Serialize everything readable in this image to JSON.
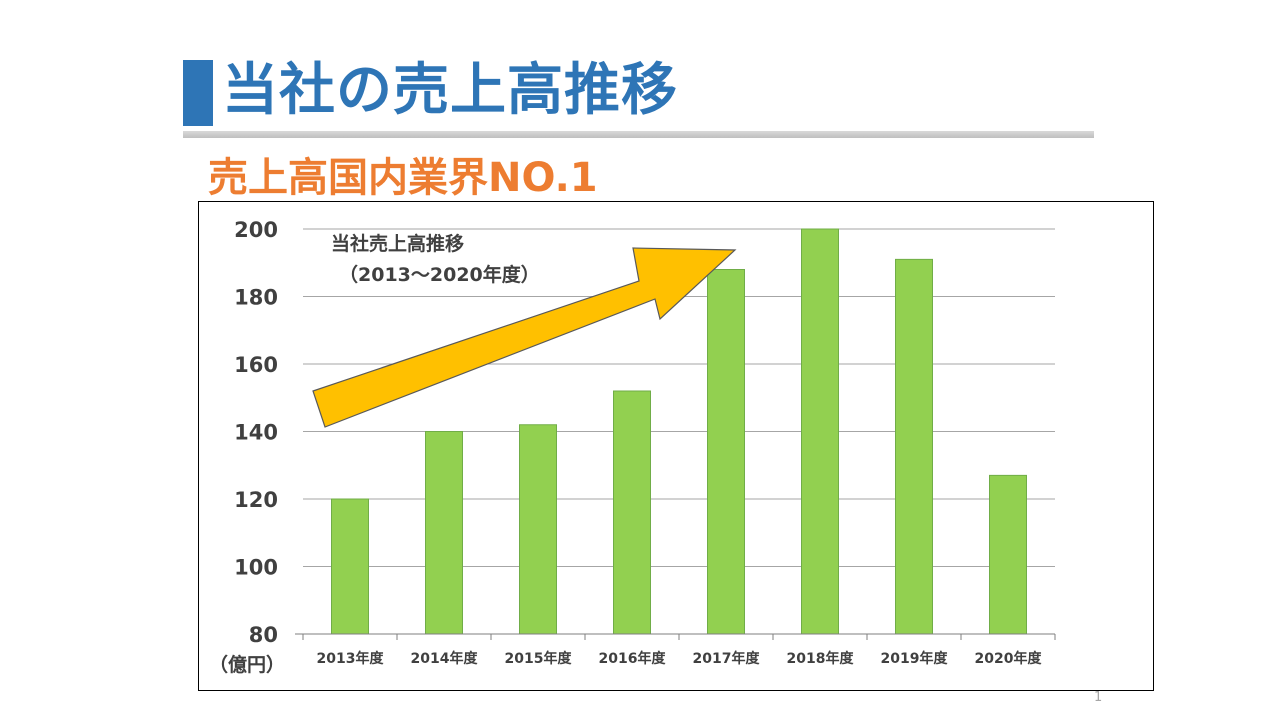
{
  "slide": {
    "title": "当社の売上高推移",
    "subtitle": "売上高国内業界NO.1",
    "page_number": "1"
  },
  "colors": {
    "title": "#2e75b6",
    "subtitle": "#ed7d31",
    "bar_fill": "#92d050",
    "bar_stroke": "#70ad47",
    "arrow_fill": "#ffc000"
  },
  "chart_data": {
    "type": "bar",
    "categories": [
      "2013年度",
      "2014年度",
      "2015年度",
      "2016年度",
      "2017年度",
      "2018年度",
      "2019年度",
      "2020年度"
    ],
    "values": [
      120,
      140,
      142,
      152,
      188,
      200,
      191,
      127
    ],
    "title": "",
    "xlabel": "",
    "ylabel": "",
    "unit_label": "（億円）",
    "ylim": [
      80,
      200
    ],
    "yticks": [
      80,
      100,
      120,
      140,
      160,
      180,
      200
    ],
    "grid": true,
    "legend": "none",
    "annotation": {
      "line1": "当社売上高推移",
      "line2": "（2013～2020年度）",
      "shape": "upward-arrow"
    }
  }
}
